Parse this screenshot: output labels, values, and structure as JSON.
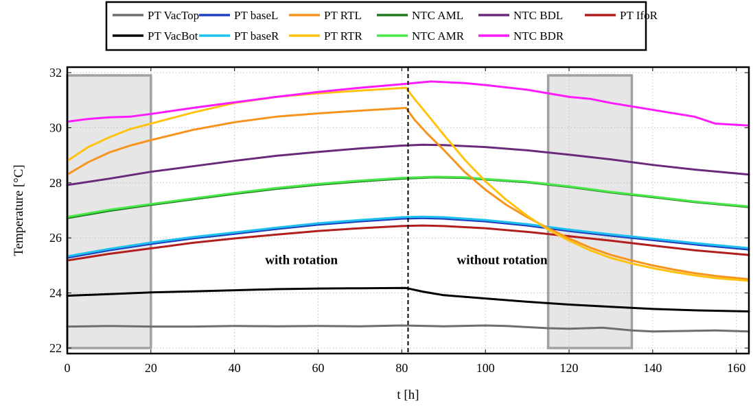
{
  "chart_data": {
    "type": "line",
    "xlabel": "t [h]",
    "ylabel": "Temperature [°C]",
    "xlim": [
      0,
      163
    ],
    "ylim": [
      21.8,
      32.2
    ],
    "x_ticks": [
      0,
      20,
      40,
      60,
      80,
      100,
      120,
      140,
      160
    ],
    "y_ticks": [
      22,
      24,
      26,
      28,
      30,
      32
    ],
    "grid": "dotted",
    "legend_position": "top, outside plot, 6 columns",
    "highlight_regions": [
      {
        "x": [
          0,
          20
        ],
        "y": [
          22,
          31.9
        ]
      },
      {
        "x": [
          115,
          135
        ],
        "y": [
          22,
          31.9
        ]
      }
    ],
    "vertical_marker": {
      "x": 81.5
    },
    "annotations": [
      {
        "text": "with rotation",
        "x": 56,
        "y": 25.05
      },
      {
        "text": "without rotation",
        "x": 104,
        "y": 25.05
      }
    ],
    "series": [
      {
        "name": "PT VacTop",
        "color": "#6e6e6e",
        "points": [
          [
            0,
            22.78
          ],
          [
            10,
            22.8
          ],
          [
            20,
            22.78
          ],
          [
            30,
            22.78
          ],
          [
            40,
            22.8
          ],
          [
            50,
            22.79
          ],
          [
            60,
            22.8
          ],
          [
            70,
            22.79
          ],
          [
            80,
            22.82
          ],
          [
            90,
            22.79
          ],
          [
            100,
            22.82
          ],
          [
            105,
            22.8
          ],
          [
            110,
            22.76
          ],
          [
            115,
            22.72
          ],
          [
            120,
            22.7
          ],
          [
            128,
            22.74
          ],
          [
            135,
            22.64
          ],
          [
            140,
            22.6
          ],
          [
            148,
            22.62
          ],
          [
            155,
            22.64
          ],
          [
            163,
            22.6
          ]
        ]
      },
      {
        "name": "PT VacBot",
        "color": "#000000",
        "points": [
          [
            0,
            23.9
          ],
          [
            10,
            23.96
          ],
          [
            20,
            24.02
          ],
          [
            30,
            24.06
          ],
          [
            40,
            24.1
          ],
          [
            50,
            24.14
          ],
          [
            60,
            24.16
          ],
          [
            70,
            24.17
          ],
          [
            81,
            24.18
          ],
          [
            85,
            24.05
          ],
          [
            90,
            23.92
          ],
          [
            100,
            23.8
          ],
          [
            110,
            23.68
          ],
          [
            120,
            23.58
          ],
          [
            130,
            23.5
          ],
          [
            140,
            23.42
          ],
          [
            150,
            23.37
          ],
          [
            163,
            23.33
          ]
        ]
      },
      {
        "name": "PT baseL",
        "color": "#1f3fbf",
        "points": [
          [
            0,
            25.28
          ],
          [
            10,
            25.55
          ],
          [
            20,
            25.78
          ],
          [
            30,
            25.98
          ],
          [
            40,
            26.15
          ],
          [
            50,
            26.32
          ],
          [
            60,
            26.48
          ],
          [
            70,
            26.6
          ],
          [
            80,
            26.7
          ],
          [
            85,
            26.72
          ],
          [
            90,
            26.7
          ],
          [
            100,
            26.6
          ],
          [
            110,
            26.45
          ],
          [
            120,
            26.25
          ],
          [
            130,
            26.08
          ],
          [
            140,
            25.92
          ],
          [
            150,
            25.76
          ],
          [
            163,
            25.58
          ]
        ]
      },
      {
        "name": "PT baseR",
        "color": "#1ec0f0",
        "points": [
          [
            0,
            25.33
          ],
          [
            10,
            25.6
          ],
          [
            20,
            25.83
          ],
          [
            30,
            26.03
          ],
          [
            40,
            26.2
          ],
          [
            50,
            26.37
          ],
          [
            60,
            26.53
          ],
          [
            70,
            26.65
          ],
          [
            80,
            26.75
          ],
          [
            85,
            26.77
          ],
          [
            90,
            26.75
          ],
          [
            100,
            26.65
          ],
          [
            110,
            26.5
          ],
          [
            120,
            26.3
          ],
          [
            130,
            26.13
          ],
          [
            140,
            25.97
          ],
          [
            150,
            25.81
          ],
          [
            163,
            25.63
          ]
        ]
      },
      {
        "name": "PT RTL",
        "color": "#f7941d",
        "points": [
          [
            0,
            28.3
          ],
          [
            5,
            28.75
          ],
          [
            10,
            29.1
          ],
          [
            15,
            29.35
          ],
          [
            20,
            29.55
          ],
          [
            30,
            29.92
          ],
          [
            40,
            30.2
          ],
          [
            50,
            30.4
          ],
          [
            60,
            30.52
          ],
          [
            70,
            30.62
          ],
          [
            81,
            30.72
          ],
          [
            83,
            30.3
          ],
          [
            86,
            29.8
          ],
          [
            90,
            29.2
          ],
          [
            95,
            28.4
          ],
          [
            100,
            27.75
          ],
          [
            105,
            27.2
          ],
          [
            110,
            26.75
          ],
          [
            115,
            26.35
          ],
          [
            120,
            25.98
          ],
          [
            125,
            25.65
          ],
          [
            130,
            25.38
          ],
          [
            135,
            25.18
          ],
          [
            140,
            25.0
          ],
          [
            145,
            24.85
          ],
          [
            150,
            24.72
          ],
          [
            155,
            24.62
          ],
          [
            163,
            24.5
          ]
        ]
      },
      {
        "name": "PT RTR",
        "color": "#ffc20e",
        "points": [
          [
            0,
            28.8
          ],
          [
            5,
            29.3
          ],
          [
            10,
            29.65
          ],
          [
            15,
            29.95
          ],
          [
            20,
            30.15
          ],
          [
            30,
            30.55
          ],
          [
            40,
            30.9
          ],
          [
            50,
            31.12
          ],
          [
            60,
            31.25
          ],
          [
            70,
            31.35
          ],
          [
            81,
            31.45
          ],
          [
            83,
            31.05
          ],
          [
            86,
            30.5
          ],
          [
            90,
            29.75
          ],
          [
            95,
            28.85
          ],
          [
            100,
            28.05
          ],
          [
            105,
            27.38
          ],
          [
            110,
            26.8
          ],
          [
            115,
            26.3
          ],
          [
            120,
            25.9
          ],
          [
            125,
            25.55
          ],
          [
            130,
            25.27
          ],
          [
            135,
            25.07
          ],
          [
            140,
            24.9
          ],
          [
            145,
            24.76
          ],
          [
            150,
            24.64
          ],
          [
            155,
            24.54
          ],
          [
            163,
            24.44
          ]
        ]
      },
      {
        "name": "NTC AML",
        "color": "#1e7a1e",
        "points": [
          [
            0,
            26.72
          ],
          [
            10,
            26.98
          ],
          [
            20,
            27.2
          ],
          [
            30,
            27.4
          ],
          [
            40,
            27.6
          ],
          [
            50,
            27.78
          ],
          [
            60,
            27.93
          ],
          [
            70,
            28.05
          ],
          [
            80,
            28.15
          ],
          [
            88,
            28.2
          ],
          [
            95,
            28.18
          ],
          [
            100,
            28.12
          ],
          [
            110,
            28.02
          ],
          [
            120,
            27.85
          ],
          [
            130,
            27.65
          ],
          [
            140,
            27.48
          ],
          [
            150,
            27.3
          ],
          [
            163,
            27.12
          ]
        ]
      },
      {
        "name": "NTC AMR",
        "color": "#48e848",
        "points": [
          [
            0,
            26.76
          ],
          [
            10,
            27.02
          ],
          [
            20,
            27.23
          ],
          [
            30,
            27.43
          ],
          [
            40,
            27.63
          ],
          [
            50,
            27.81
          ],
          [
            60,
            27.96
          ],
          [
            70,
            28.08
          ],
          [
            80,
            28.18
          ],
          [
            88,
            28.22
          ],
          [
            95,
            28.2
          ],
          [
            100,
            28.14
          ],
          [
            110,
            28.04
          ],
          [
            120,
            27.87
          ],
          [
            130,
            27.67
          ],
          [
            140,
            27.5
          ],
          [
            150,
            27.32
          ],
          [
            163,
            27.14
          ]
        ]
      },
      {
        "name": "NTC BDL",
        "color": "#6a2a7a",
        "points": [
          [
            0,
            27.92
          ],
          [
            10,
            28.15
          ],
          [
            20,
            28.4
          ],
          [
            30,
            28.6
          ],
          [
            40,
            28.8
          ],
          [
            50,
            28.98
          ],
          [
            60,
            29.12
          ],
          [
            70,
            29.25
          ],
          [
            80,
            29.35
          ],
          [
            85,
            29.38
          ],
          [
            90,
            29.37
          ],
          [
            100,
            29.3
          ],
          [
            110,
            29.18
          ],
          [
            120,
            29.02
          ],
          [
            130,
            28.85
          ],
          [
            140,
            28.65
          ],
          [
            150,
            28.48
          ],
          [
            163,
            28.3
          ]
        ]
      },
      {
        "name": "NTC BDR",
        "color": "#ff1aff",
        "points": [
          [
            0,
            30.22
          ],
          [
            5,
            30.32
          ],
          [
            10,
            30.38
          ],
          [
            15,
            30.4
          ],
          [
            20,
            30.5
          ],
          [
            30,
            30.72
          ],
          [
            40,
            30.92
          ],
          [
            50,
            31.12
          ],
          [
            60,
            31.3
          ],
          [
            70,
            31.45
          ],
          [
            80,
            31.58
          ],
          [
            87,
            31.68
          ],
          [
            95,
            31.62
          ],
          [
            100,
            31.55
          ],
          [
            110,
            31.38
          ],
          [
            120,
            31.12
          ],
          [
            125,
            31.05
          ],
          [
            130,
            30.9
          ],
          [
            140,
            30.65
          ],
          [
            150,
            30.4
          ],
          [
            155,
            30.15
          ],
          [
            163,
            30.08
          ]
        ]
      },
      {
        "name": "PT IfoR",
        "color": "#b01e1e",
        "points": [
          [
            0,
            25.18
          ],
          [
            10,
            25.42
          ],
          [
            20,
            25.62
          ],
          [
            30,
            25.82
          ],
          [
            40,
            25.98
          ],
          [
            50,
            26.12
          ],
          [
            60,
            26.25
          ],
          [
            70,
            26.35
          ],
          [
            80,
            26.43
          ],
          [
            85,
            26.45
          ],
          [
            90,
            26.43
          ],
          [
            100,
            26.35
          ],
          [
            110,
            26.22
          ],
          [
            120,
            26.06
          ],
          [
            130,
            25.9
          ],
          [
            140,
            25.72
          ],
          [
            150,
            25.55
          ],
          [
            163,
            25.38
          ]
        ]
      }
    ]
  },
  "legend_order": [
    "PT VacTop",
    "PT baseL",
    "PT RTL",
    "NTC AML",
    "NTC BDL",
    "PT IfoR",
    "PT VacBot",
    "PT baseR",
    "PT RTR",
    "NTC AMR",
    "NTC BDR"
  ]
}
